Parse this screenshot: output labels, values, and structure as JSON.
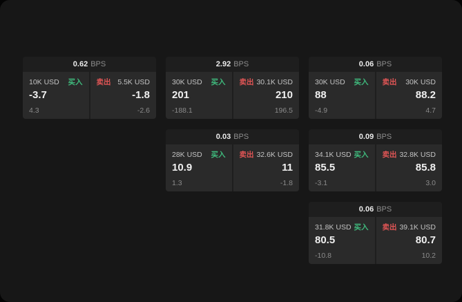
{
  "colors": {
    "buy": "#3fba7d",
    "sell": "#e05555"
  },
  "cards": [
    {
      "bps": "0.62",
      "bps_label": "BPS",
      "buy": {
        "size": "10K USD",
        "side": "买入",
        "price": "-3.7",
        "sub": "4.3"
      },
      "sell": {
        "side": "卖出",
        "size": "5.5K USD",
        "price": "-1.8",
        "sub": "-2.6"
      }
    },
    {
      "bps": "2.92",
      "bps_label": "BPS",
      "buy": {
        "size": "30K USD",
        "side": "买入",
        "price": "201",
        "sub": "-188.1"
      },
      "sell": {
        "side": "卖出",
        "size": "30.1K USD",
        "price": "210",
        "sub": "196.5"
      }
    },
    {
      "bps": "0.06",
      "bps_label": "BPS",
      "buy": {
        "size": "30K USD",
        "side": "买入",
        "price": "88",
        "sub": "-4.9"
      },
      "sell": {
        "side": "卖出",
        "size": "30K USD",
        "price": "88.2",
        "sub": "4.7"
      }
    },
    {
      "bps": "0.03",
      "bps_label": "BPS",
      "buy": {
        "size": "28K USD",
        "side": "买入",
        "price": "10.9",
        "sub": "1.3"
      },
      "sell": {
        "side": "卖出",
        "size": "32.6K USD",
        "price": "11",
        "sub": "-1.8"
      }
    },
    {
      "bps": "0.09",
      "bps_label": "BPS",
      "buy": {
        "size": "34.1K USD",
        "side": "买入",
        "price": "85.5",
        "sub": "-3.1"
      },
      "sell": {
        "side": "卖出",
        "size": "32.8K USD",
        "price": "85.8",
        "sub": "3.0"
      }
    },
    {
      "bps": "0.06",
      "bps_label": "BPS",
      "buy": {
        "size": "31.8K USD",
        "side": "买入",
        "price": "80.5",
        "sub": "-10.8"
      },
      "sell": {
        "side": "卖出",
        "size": "39.1K USD",
        "price": "80.7",
        "sub": "10.2"
      }
    }
  ]
}
